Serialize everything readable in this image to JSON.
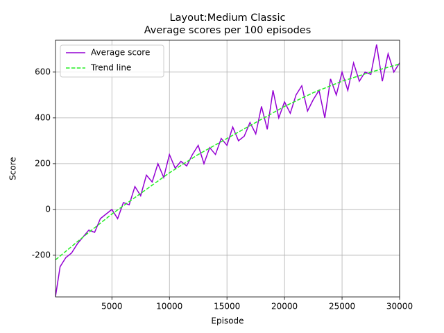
{
  "chart_data": {
    "type": "line",
    "title": "Layout:Medium Classic",
    "subtitle": "Average scores per 100 episodes",
    "x_label": "Episode",
    "y_label": "Score",
    "xlim": [
      100,
      30000
    ],
    "ylim": [
      -382,
      739
    ],
    "xticks": [
      5000,
      10000,
      15000,
      20000,
      25000,
      30000
    ],
    "yticks": [
      -200,
      0,
      200,
      400,
      600
    ],
    "grid": true,
    "legend": "upper left",
    "series": [
      {
        "name": "Average score",
        "color": "#9400d3",
        "style": "solid",
        "x": [
          100,
          500,
          1000,
          1500,
          2000,
          2500,
          3000,
          3500,
          4000,
          4500,
          5000,
          5500,
          6000,
          6500,
          7000,
          7500,
          8000,
          8500,
          9000,
          9500,
          10000,
          10500,
          11000,
          11500,
          12000,
          12500,
          13000,
          13500,
          14000,
          14500,
          15000,
          15500,
          16000,
          16500,
          17000,
          17500,
          18000,
          18500,
          19000,
          19500,
          20000,
          20500,
          21000,
          21500,
          22000,
          22500,
          23000,
          23500,
          24000,
          24500,
          25000,
          25500,
          26000,
          26500,
          27000,
          27500,
          28000,
          28500,
          29000,
          29500,
          30000
        ],
        "values": [
          -380,
          -250,
          -210,
          -190,
          -150,
          -120,
          -90,
          -100,
          -40,
          -20,
          0,
          -40,
          30,
          20,
          100,
          60,
          150,
          120,
          200,
          140,
          240,
          180,
          210,
          190,
          240,
          280,
          200,
          270,
          240,
          310,
          280,
          360,
          300,
          320,
          380,
          330,
          450,
          350,
          520,
          400,
          470,
          420,
          500,
          540,
          430,
          480,
          520,
          400,
          570,
          500,
          600,
          520,
          640,
          560,
          600,
          590,
          720,
          560,
          680,
          600,
          640
        ]
      },
      {
        "name": "Trend line",
        "color": "#22ee22",
        "style": "dashed",
        "x": [
          100,
          2500,
          5000,
          7500,
          10000,
          12500,
          15000,
          17500,
          20000,
          22500,
          25000,
          27500,
          30000
        ],
        "values": [
          -220,
          -120,
          -20,
          70,
          160,
          240,
          310,
          380,
          450,
          510,
          560,
          600,
          635
        ]
      }
    ]
  }
}
